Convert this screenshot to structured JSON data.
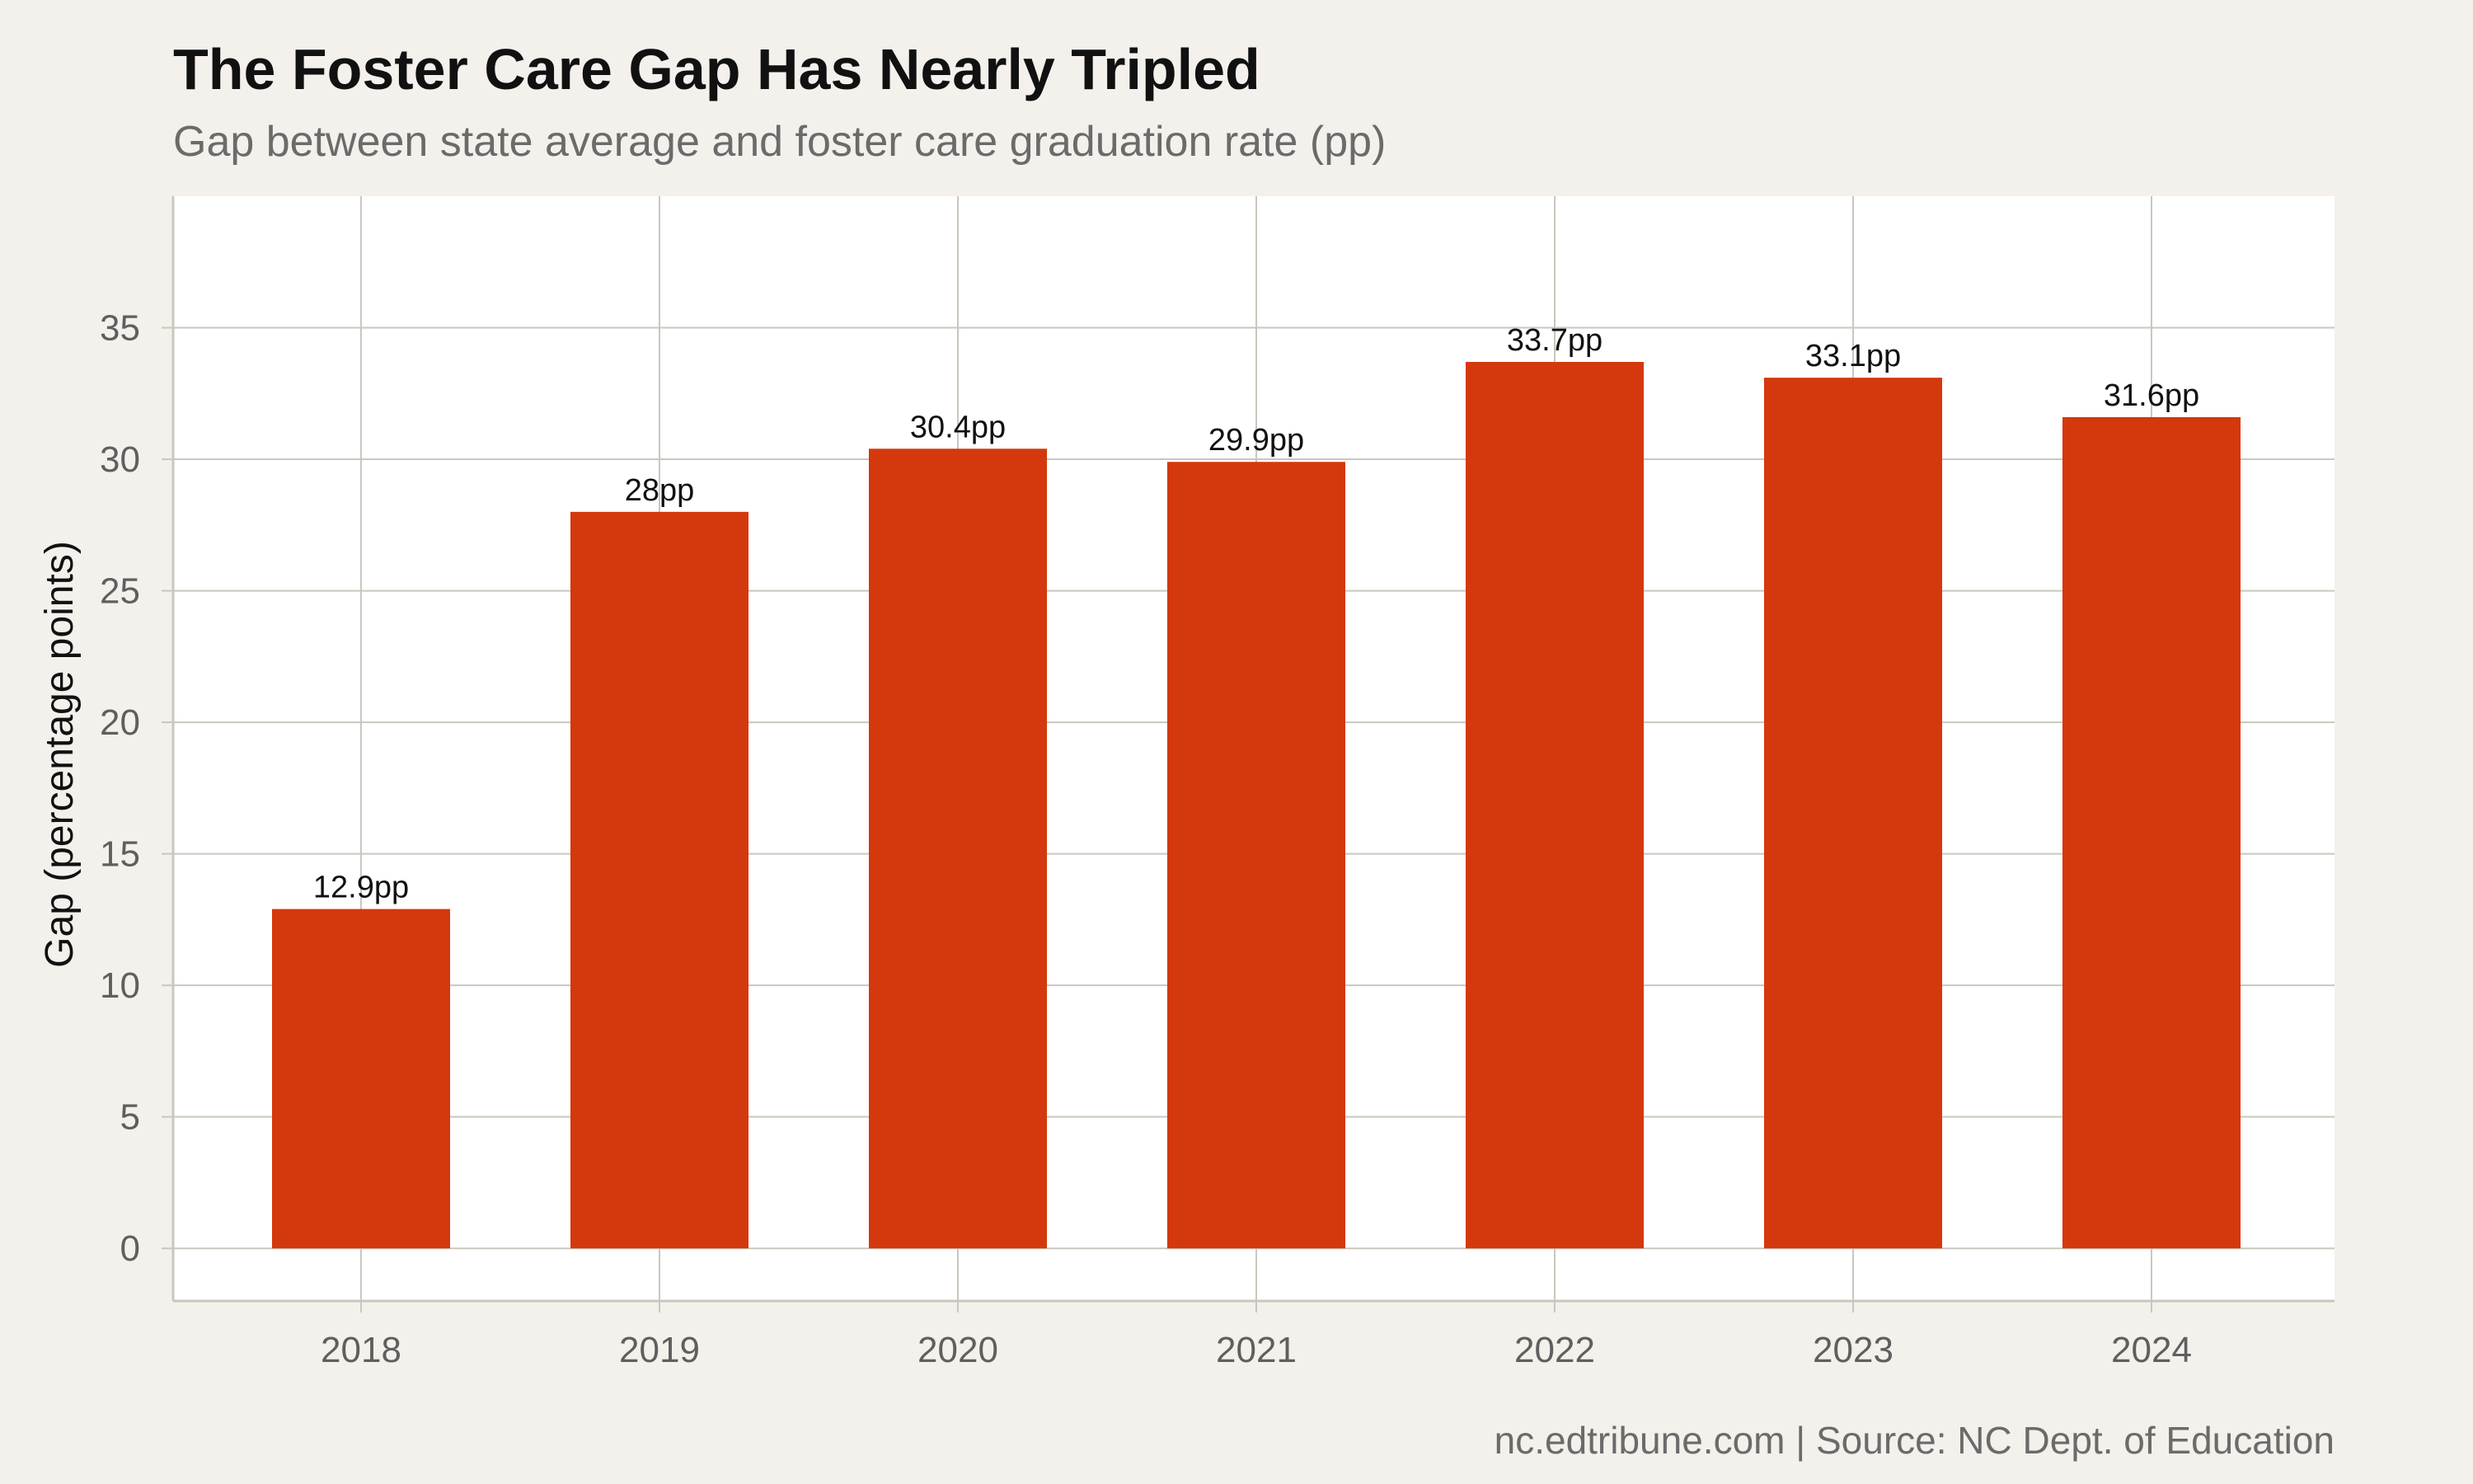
{
  "chart_data": {
    "type": "bar",
    "title": "The Foster Care Gap Has Nearly Tripled",
    "subtitle": "Gap between state average and foster care graduation rate (pp)",
    "ylabel": "Gap (percentage points)",
    "xlabel": "",
    "categories": [
      "2018",
      "2019",
      "2020",
      "2021",
      "2022",
      "2023",
      "2024"
    ],
    "values": [
      12.9,
      28,
      30.4,
      29.9,
      33.7,
      33.1,
      31.6
    ],
    "data_labels": [
      "12.9pp",
      "28pp",
      "30.4pp",
      "29.9pp",
      "33.7pp",
      "33.1pp",
      "31.6pp"
    ],
    "yticks": [
      0,
      5,
      10,
      15,
      20,
      25,
      30,
      35
    ],
    "ylim": [
      -2,
      40
    ],
    "grid": true,
    "legend": "none",
    "bar_color": "#d4380d",
    "caption": "nc.edtribune.com | Source: NC Dept. of Education"
  }
}
